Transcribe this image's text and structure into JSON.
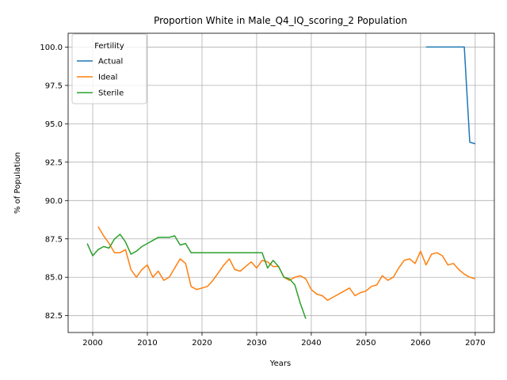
{
  "chart_data": {
    "type": "line",
    "title": "Proportion White in Male_Q4_IQ_scoring_2 Population",
    "xlabel": "Years",
    "ylabel": "% of Population",
    "xlim": [
      1995.5,
      2073.5
    ],
    "ylim": [
      81.4,
      100.9
    ],
    "xticks": [
      2000,
      2010,
      2020,
      2030,
      2040,
      2050,
      2060,
      2070
    ],
    "yticks": [
      82.5,
      85.0,
      87.5,
      90.0,
      92.5,
      95.0,
      97.5,
      100.0
    ],
    "ytick_labels": [
      "82.5",
      "85.0",
      "87.5",
      "90.0",
      "92.5",
      "95.0",
      "97.5",
      "100.0"
    ],
    "grid": true,
    "legend": {
      "title": "Fertility",
      "placement": "top-left"
    },
    "series": [
      {
        "name": "Actual",
        "color": "#1f77b4",
        "x": [
          2061,
          2062,
          2063,
          2064,
          2065,
          2066,
          2067,
          2068,
          2069,
          2070
        ],
        "y": [
          100.0,
          100.0,
          100.0,
          100.0,
          100.0,
          100.0,
          100.0,
          100.0,
          93.8,
          93.7
        ]
      },
      {
        "name": "Ideal",
        "color": "#ff7f0e",
        "x": [
          2001,
          2002,
          2003,
          2004,
          2005,
          2006,
          2007,
          2008,
          2009,
          2010,
          2011,
          2012,
          2013,
          2014,
          2015,
          2016,
          2017,
          2018,
          2019,
          2020,
          2021,
          2022,
          2023,
          2024,
          2025,
          2026,
          2027,
          2028,
          2029,
          2030,
          2031,
          2032,
          2033,
          2034,
          2035,
          2036,
          2037,
          2038,
          2039,
          2040,
          2041,
          2042,
          2043,
          2044,
          2045,
          2046,
          2047,
          2048,
          2049,
          2050,
          2051,
          2052,
          2053,
          2054,
          2055,
          2056,
          2057,
          2058,
          2059,
          2060,
          2061,
          2062,
          2063,
          2064,
          2065,
          2066,
          2067,
          2068,
          2069,
          2070
        ],
        "y": [
          88.3,
          87.7,
          87.2,
          86.6,
          86.6,
          86.8,
          85.5,
          85.0,
          85.5,
          85.8,
          85.0,
          85.4,
          84.8,
          85.0,
          85.6,
          86.2,
          85.9,
          84.4,
          84.2,
          84.3,
          84.4,
          84.8,
          85.3,
          85.8,
          86.2,
          85.5,
          85.4,
          85.7,
          86.0,
          85.6,
          86.1,
          86.0,
          85.7,
          85.7,
          85.0,
          84.8,
          85.0,
          85.1,
          84.9,
          84.2,
          83.9,
          83.8,
          83.5,
          83.7,
          83.9,
          84.1,
          84.3,
          83.8,
          84.0,
          84.1,
          84.4,
          84.5,
          85.1,
          84.8,
          85.0,
          85.6,
          86.1,
          86.2,
          85.9,
          86.7,
          85.8,
          86.5,
          86.6,
          86.4,
          85.8,
          85.9,
          85.5,
          85.2,
          85.0,
          84.9
        ]
      },
      {
        "name": "Sterile",
        "color": "#2ca02c",
        "x": [
          1999,
          2000,
          2001,
          2002,
          2003,
          2004,
          2005,
          2006,
          2007,
          2008,
          2009,
          2010,
          2011,
          2012,
          2013,
          2014,
          2015,
          2016,
          2017,
          2018,
          2019,
          2020,
          2021,
          2022,
          2023,
          2024,
          2025,
          2026,
          2027,
          2028,
          2029,
          2030,
          2031,
          2032,
          2033,
          2034,
          2035,
          2036,
          2037,
          2038,
          2039
        ],
        "y": [
          87.2,
          86.4,
          86.8,
          87.0,
          86.9,
          87.5,
          87.8,
          87.3,
          86.5,
          86.7,
          87.0,
          87.2,
          87.4,
          87.6,
          87.6,
          87.6,
          87.7,
          87.1,
          87.2,
          86.6,
          86.6,
          86.6,
          86.6,
          86.6,
          86.6,
          86.6,
          86.6,
          86.6,
          86.6,
          86.6,
          86.6,
          86.6,
          86.6,
          85.6,
          86.1,
          85.7,
          85.0,
          84.9,
          84.5,
          83.3,
          82.3
        ]
      }
    ]
  }
}
